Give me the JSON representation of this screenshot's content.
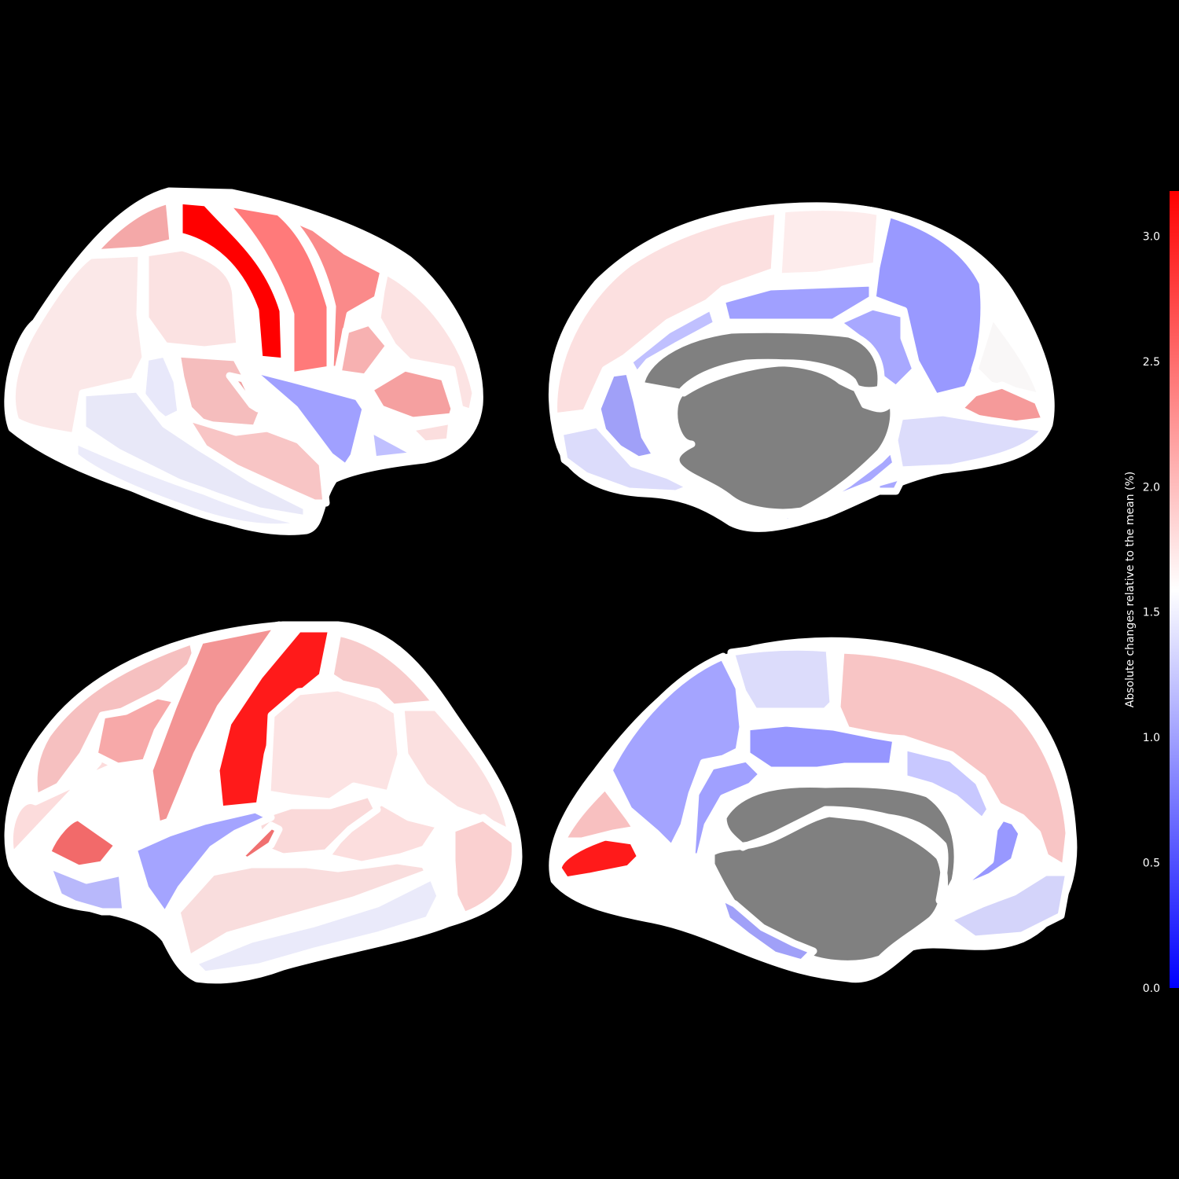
{
  "colorbar": {
    "label": "Absolute changes relative to the mean (%)",
    "ticks": [
      "0.0",
      "0.5",
      "1.0",
      "1.5",
      "2.0",
      "2.5",
      "3.0"
    ],
    "tick_values": [
      0.0,
      0.5,
      1.0,
      1.5,
      2.0,
      2.5,
      3.0
    ],
    "range": [
      0.0,
      3.18
    ],
    "colormap": [
      "#0000ff",
      "#ffffff",
      "#ff0000"
    ]
  },
  "colors": {
    "background": "#000000",
    "outline": "#ffffff",
    "medial_wall": "#808080"
  },
  "views": [
    "left-lateral",
    "left-medial",
    "right-lateral",
    "right-medial"
  ]
}
